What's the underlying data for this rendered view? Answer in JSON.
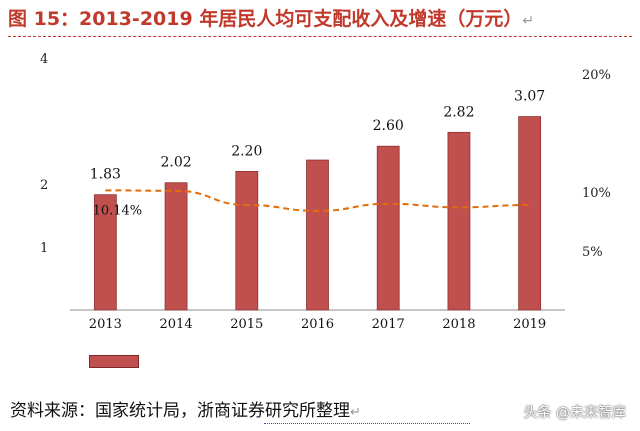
{
  "title": {
    "text": "图 15：2013-2019 年居民人均可支配收入及增速（万元）",
    "para_mark": "↵"
  },
  "source": {
    "text": "资料来源：国家统计局，浙商证券研究所整理",
    "para_mark": "↵"
  },
  "watermark": "头条 @未来智库",
  "colors": {
    "title": "#c0392b",
    "bar": "#c0504d",
    "bar_edge": "#8e3431",
    "line": "#e36c09",
    "axis": "#8c8c8c"
  },
  "chart_data": {
    "type": "bar",
    "categories": [
      "2013",
      "2014",
      "2015",
      "2016",
      "2017",
      "2018",
      "2019"
    ],
    "series": [
      {
        "type": "bar",
        "axis": "left",
        "values": [
          1.83,
          2.02,
          2.2,
          2.38,
          2.6,
          2.82,
          3.07
        ],
        "labels": [
          "1.83",
          "2.02",
          "2.20",
          "",
          "2.60",
          "2.82",
          "3.07"
        ]
      },
      {
        "type": "line",
        "axis": "right",
        "style": "dashed",
        "values": [
          10.14,
          10.1,
          8.9,
          8.4,
          9.0,
          8.7,
          8.9
        ],
        "labels": [
          "10.14%",
          "",
          "",
          "",
          "",
          "",
          ""
        ]
      }
    ],
    "y_left": {
      "ylim": [
        0,
        4
      ],
      "ticks": [
        "1",
        "2",
        "4"
      ],
      "tick_values": [
        1,
        2,
        4
      ]
    },
    "y_right": {
      "ylim": [
        0,
        20
      ],
      "ticks": [
        "5%",
        "10%",
        "20%"
      ],
      "tick_values": [
        5,
        10,
        20
      ]
    },
    "legend_position": "bottom-left",
    "grid": false
  }
}
